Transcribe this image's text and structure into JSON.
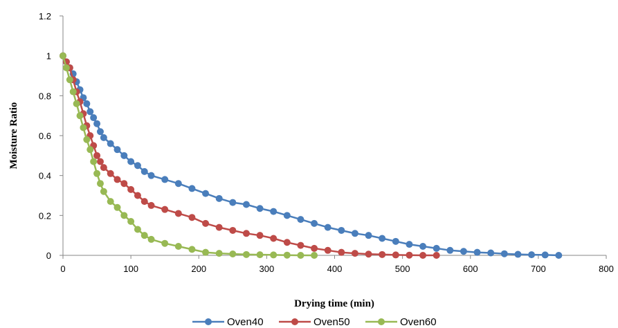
{
  "chart_data": {
    "type": "line",
    "xlabel": "Drying time (min)",
    "ylabel": "Moisture Ratio",
    "xlim": [
      0,
      800
    ],
    "ylim": [
      0,
      1.2
    ],
    "xticks": [
      "0",
      "100",
      "200",
      "300",
      "400",
      "500",
      "600",
      "700",
      "800"
    ],
    "yticks": [
      "0",
      "0.2",
      "0.4",
      "0.6",
      "0.8",
      "1",
      "1.2"
    ],
    "grid": false,
    "legend": "bottom",
    "series": [
      {
        "name": "Oven40",
        "color": "#4a7ebb",
        "x": [
          0,
          5,
          10,
          15,
          20,
          25,
          30,
          35,
          40,
          45,
          50,
          55,
          60,
          70,
          80,
          90,
          100,
          110,
          120,
          130,
          150,
          170,
          190,
          210,
          230,
          250,
          270,
          290,
          310,
          330,
          350,
          370,
          390,
          410,
          430,
          450,
          470,
          490,
          510,
          530,
          550,
          570,
          590,
          610,
          630,
          650,
          670,
          690,
          710,
          730
        ],
        "values": [
          1.0,
          0.97,
          0.94,
          0.91,
          0.87,
          0.83,
          0.79,
          0.76,
          0.72,
          0.69,
          0.66,
          0.62,
          0.59,
          0.56,
          0.53,
          0.5,
          0.47,
          0.45,
          0.42,
          0.4,
          0.38,
          0.36,
          0.335,
          0.31,
          0.285,
          0.265,
          0.255,
          0.235,
          0.22,
          0.2,
          0.18,
          0.16,
          0.14,
          0.125,
          0.11,
          0.1,
          0.085,
          0.07,
          0.055,
          0.045,
          0.035,
          0.025,
          0.02,
          0.015,
          0.012,
          0.008,
          0.005,
          0.003,
          0.002,
          0.0
        ]
      },
      {
        "name": "Oven50",
        "color": "#be4b48",
        "x": [
          0,
          5,
          10,
          15,
          20,
          25,
          30,
          35,
          40,
          45,
          50,
          55,
          60,
          70,
          80,
          90,
          100,
          110,
          120,
          130,
          150,
          170,
          190,
          210,
          230,
          250,
          270,
          290,
          310,
          330,
          350,
          370,
          390,
          410,
          430,
          450,
          470,
          490,
          510,
          530,
          550
        ],
        "values": [
          1.0,
          0.97,
          0.94,
          0.88,
          0.82,
          0.77,
          0.71,
          0.65,
          0.6,
          0.55,
          0.5,
          0.47,
          0.44,
          0.41,
          0.38,
          0.36,
          0.33,
          0.3,
          0.27,
          0.25,
          0.23,
          0.21,
          0.19,
          0.16,
          0.14,
          0.125,
          0.11,
          0.1,
          0.085,
          0.065,
          0.05,
          0.035,
          0.025,
          0.015,
          0.01,
          0.006,
          0.004,
          0.002,
          0.001,
          0.0,
          0.0
        ]
      },
      {
        "name": "Oven60",
        "color": "#98b954",
        "x": [
          0,
          5,
          10,
          15,
          20,
          25,
          30,
          35,
          40,
          45,
          50,
          55,
          60,
          70,
          80,
          90,
          100,
          110,
          120,
          130,
          150,
          170,
          190,
          210,
          230,
          250,
          270,
          290,
          310,
          330,
          350,
          370
        ],
        "values": [
          1.0,
          0.94,
          0.88,
          0.82,
          0.76,
          0.7,
          0.64,
          0.58,
          0.53,
          0.47,
          0.41,
          0.36,
          0.32,
          0.27,
          0.24,
          0.2,
          0.17,
          0.13,
          0.1,
          0.08,
          0.06,
          0.045,
          0.03,
          0.015,
          0.01,
          0.007,
          0.004,
          0.003,
          0.002,
          0.001,
          0.0,
          0.0
        ]
      }
    ]
  }
}
